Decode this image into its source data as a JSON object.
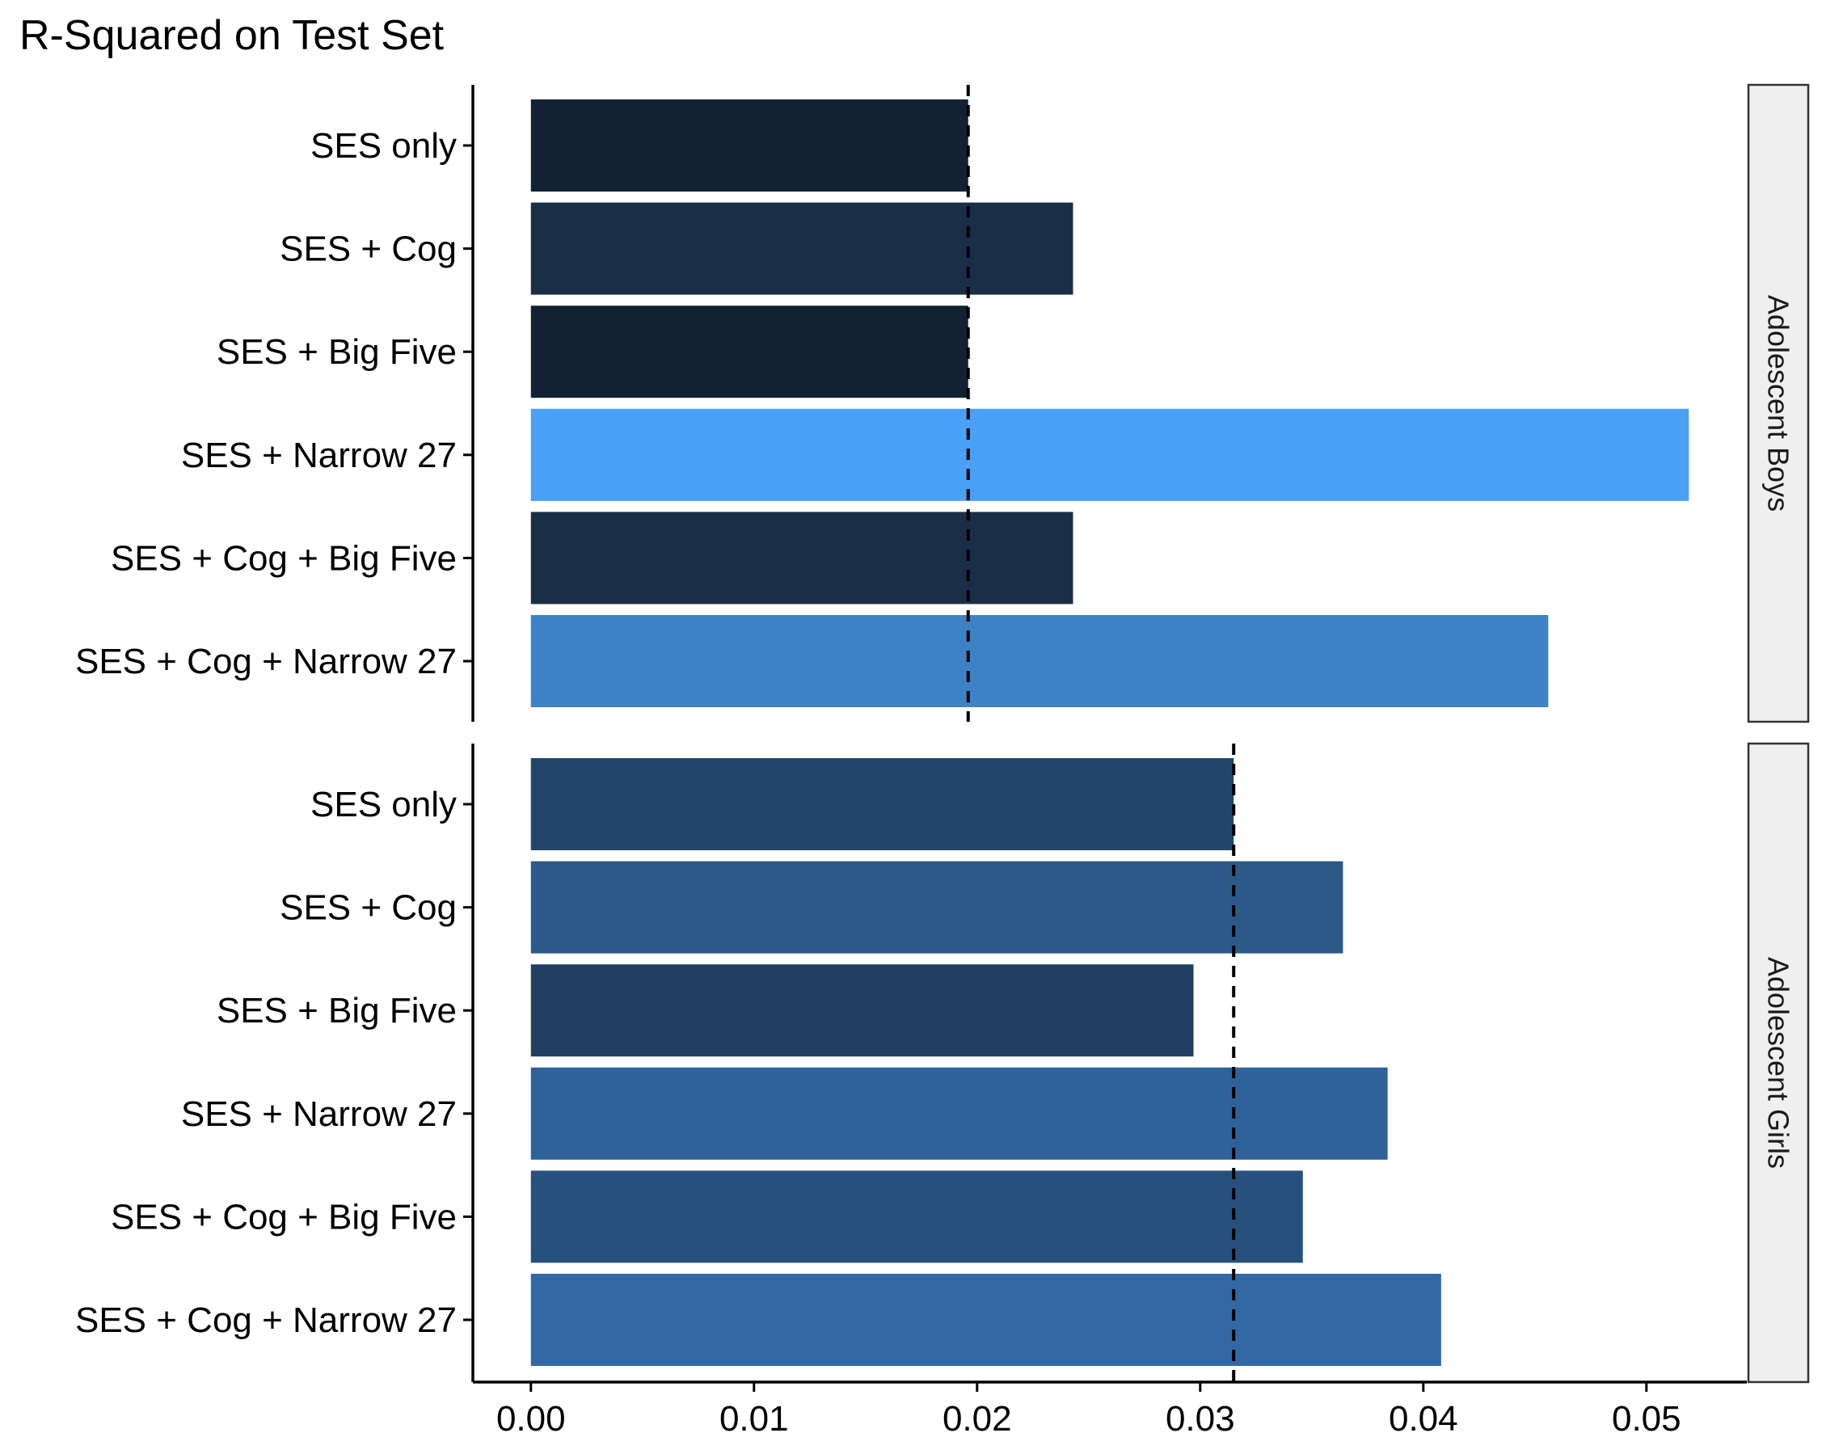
{
  "chart_data": {
    "type": "bar",
    "orientation": "horizontal",
    "title": "R-Squared on Test Set",
    "xlabel": "",
    "ylabel": "",
    "xlim": [
      -0.0026,
      0.0545
    ],
    "x_ticks": [
      "0.00",
      "0.01",
      "0.02",
      "0.03",
      "0.04",
      "0.05"
    ],
    "x_tick_values": [
      0,
      0.01,
      0.02,
      0.03,
      0.04,
      0.05
    ],
    "grid": false,
    "legend": "none",
    "categories": [
      "SES only",
      "SES + Cog",
      "SES + Big Five",
      "SES + Narrow 27",
      "SES + Cog + Big Five",
      "SES + Cog + Narrow 27"
    ],
    "panels": [
      {
        "name": "Adolescent Boys",
        "values": [
          0.0196,
          0.0243,
          0.0196,
          0.0519,
          0.0243,
          0.0456
        ],
        "colors": [
          "#132233",
          "#1a2e48",
          "#132233",
          "#4aa0f5",
          "#1a2e48",
          "#3d82c5"
        ],
        "reference_line": 0.0196
      },
      {
        "name": "Adolescent Girls",
        "values": [
          0.0315,
          0.0364,
          0.0297,
          0.0384,
          0.0346,
          0.0408
        ],
        "colors": [
          "#22466b",
          "#2c5a88",
          "#203f62",
          "#2f619a",
          "#27507d",
          "#3269a5"
        ],
        "reference_line": 0.0315
      }
    ]
  }
}
